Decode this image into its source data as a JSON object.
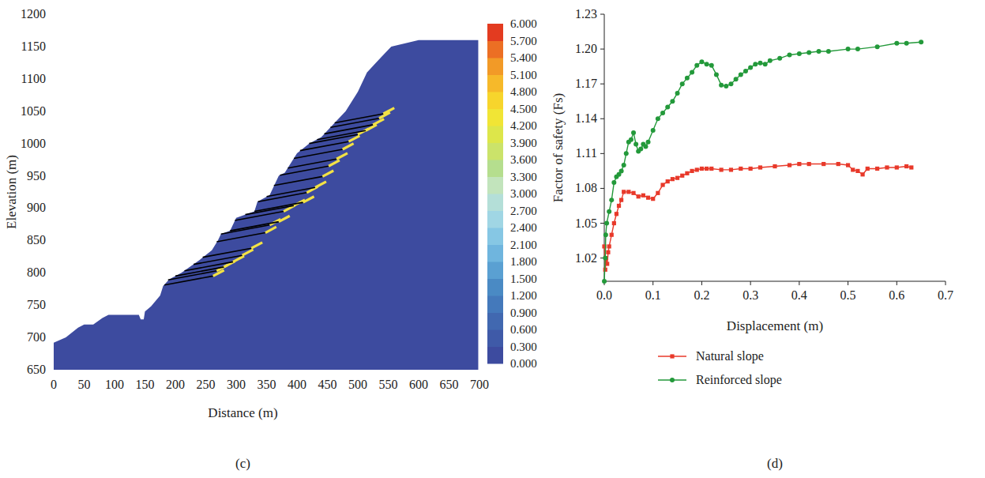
{
  "chart_data": [
    {
      "type": "section",
      "caption": "(c)",
      "xlabel": "Distance (m)",
      "ylabel": "Elevation (m)",
      "xlim": [
        0,
        700
      ],
      "xticks": [
        0,
        50,
        100,
        150,
        200,
        250,
        300,
        350,
        400,
        450,
        500,
        550,
        600,
        650,
        700
      ],
      "ylim": [
        650,
        1200
      ],
      "yticks": [
        650,
        700,
        750,
        800,
        850,
        900,
        950,
        1000,
        1050,
        1100,
        1150,
        1200
      ],
      "color": "#3d4b9f",
      "profile": {
        "x": [
          0,
          20,
          40,
          50,
          65,
          80,
          90,
          140,
          143,
          148,
          150,
          160,
          175,
          180,
          190,
          210,
          240,
          260,
          270,
          275,
          290,
          300,
          330,
          335,
          355,
          370,
          380,
          390,
          400,
          420,
          440,
          460,
          480,
          500,
          515,
          530,
          545,
          555,
          600,
          698,
          698,
          0
        ],
        "y": [
          692,
          700,
          715,
          720,
          720,
          730,
          735,
          735,
          728,
          728,
          740,
          748,
          765,
          780,
          790,
          800,
          820,
          835,
          850,
          860,
          865,
          885,
          895,
          910,
          920,
          950,
          955,
          970,
          985,
          1000,
          1010,
          1030,
          1050,
          1080,
          1110,
          1125,
          1140,
          1150,
          1160,
          1160,
          650,
          650
        ]
      },
      "anchors": {
        "x_head": [
          182,
          188,
          200,
          215,
          230,
          245,
          268,
          275,
          290,
          298,
          315,
          330,
          336,
          350,
          362,
          372,
          385,
          395,
          405,
          420,
          433,
          445,
          455,
          462
        ],
        "y_head": [
          781,
          789,
          795,
          803,
          813,
          824,
          848,
          860,
          865,
          881,
          890,
          895,
          910,
          918,
          935,
          951,
          962,
          977,
          989,
          1000,
          1006,
          1015,
          1025,
          1032
        ],
        "x_bond": [
          262,
          268,
          280,
          295,
          310,
          325,
          348,
          355,
          370,
          378,
          395,
          410,
          416,
          430,
          442,
          452,
          465,
          475,
          485,
          500,
          513,
          525,
          535,
          542
        ],
        "y_bond": [
          795,
          803,
          809,
          817,
          827,
          838,
          862,
          874,
          879,
          895,
          904,
          909,
          924,
          932,
          949,
          965,
          976,
          991,
          1003,
          1014,
          1020,
          1029,
          1039,
          1046
        ],
        "x_end": [
          280,
          286,
          298,
          313,
          328,
          343,
          366,
          373,
          388,
          396,
          413,
          428,
          434,
          448,
          460,
          470,
          483,
          493,
          503,
          518,
          531,
          543,
          553,
          560
        ],
        "y_end": [
          804,
          812,
          818,
          826,
          836,
          847,
          871,
          883,
          888,
          904,
          913,
          918,
          933,
          941,
          958,
          974,
          985,
          1000,
          1012,
          1023,
          1029,
          1038,
          1048,
          1055
        ]
      },
      "colorbar": {
        "range": [
          0,
          6
        ],
        "ticks": [
          {
            "value": 0,
            "label": "0.000"
          },
          {
            "value": 0.3,
            "label": "0.300"
          },
          {
            "value": 0.6,
            "label": "0.600"
          },
          {
            "value": 0.9,
            "label": "0.900"
          },
          {
            "value": 1.2,
            "label": "1.200"
          },
          {
            "value": 1.5,
            "label": "1.500"
          },
          {
            "value": 1.8,
            "label": "1.800"
          },
          {
            "value": 2.1,
            "label": "2.100"
          },
          {
            "value": 2.4,
            "label": "2.400"
          },
          {
            "value": 2.7,
            "label": "2.700"
          },
          {
            "value": 3,
            "label": "3.000"
          },
          {
            "value": 3.3,
            "label": "3.300"
          },
          {
            "value": 3.6,
            "label": "3.600"
          },
          {
            "value": 3.9,
            "label": "3.900"
          },
          {
            "value": 4.2,
            "label": "4.200"
          },
          {
            "value": 4.5,
            "label": "4.500"
          },
          {
            "value": 4.8,
            "label": "4.800"
          },
          {
            "value": 5.1,
            "label": "5.100"
          },
          {
            "value": 5.4,
            "label": "5.400"
          },
          {
            "value": 5.7,
            "label": "5.700"
          },
          {
            "value": 6,
            "label": "6.000"
          }
        ],
        "colors": [
          "#3d4b9f",
          "#3f5aa8",
          "#4168b0",
          "#4479bb",
          "#4a8ac4",
          "#5aa0d2",
          "#6fb5de",
          "#86c7e4",
          "#a0d6e4",
          "#b4dfd8",
          "#c2e4bc",
          "#b5de8e",
          "#cbe36a",
          "#dde64a",
          "#f1e535",
          "#f7d52c",
          "#f6b92a",
          "#f29a27",
          "#ec6f24",
          "#e33b20"
        ]
      }
    },
    {
      "type": "line",
      "caption": "(d)",
      "xlabel": "Displacement (m)",
      "ylabel": "Factor of safety (Fs)",
      "xlim": [
        0,
        0.7
      ],
      "xticks": [
        {
          "value": 0,
          "label": "0.0"
        },
        0.1,
        0.2,
        0.3,
        0.4,
        0.5,
        0.6,
        0.7
      ],
      "ylim": [
        1.0,
        1.23
      ],
      "yticks": [
        1.02,
        1.05,
        1.08,
        1.11,
        1.14,
        1.17,
        {
          "value": 1.2,
          "label": "1.20"
        },
        1.23
      ],
      "grid": false,
      "legend": "bottom",
      "series": [
        {
          "name": "Natural slope",
          "color": "#e8392a",
          "marker": "square",
          "line_style": "solid",
          "x": [
            0,
            0.002,
            0.004,
            0.006,
            0.008,
            0.01,
            0.015,
            0.02,
            0.025,
            0.03,
            0.035,
            0.04,
            0.05,
            0.06,
            0.07,
            0.08,
            0.09,
            0.1,
            0.11,
            0.12,
            0.13,
            0.14,
            0.15,
            0.16,
            0.17,
            0.18,
            0.19,
            0.2,
            0.21,
            0.22,
            0.24,
            0.26,
            0.28,
            0.3,
            0.32,
            0.35,
            0.38,
            0.4,
            0.42,
            0.45,
            0.48,
            0.5,
            0.51,
            0.52,
            0.53,
            0.54,
            0.56,
            0.58,
            0.6,
            0.62,
            0.63
          ],
          "values": [
            1.03,
            1.01,
            1.02,
            1.015,
            1.025,
            1.03,
            1.04,
            1.05,
            1.058,
            1.065,
            1.07,
            1.077,
            1.077,
            1.076,
            1.073,
            1.074,
            1.072,
            1.071,
            1.076,
            1.083,
            1.086,
            1.088,
            1.089,
            1.091,
            1.093,
            1.095,
            1.096,
            1.097,
            1.097,
            1.097,
            1.096,
            1.096,
            1.097,
            1.097,
            1.098,
            1.099,
            1.1,
            1.101,
            1.101,
            1.101,
            1.101,
            1.1,
            1.096,
            1.095,
            1.092,
            1.097,
            1.097,
            1.098,
            1.098,
            1.099,
            1.098
          ]
        },
        {
          "name": "Reinforced slope",
          "color": "#23993a",
          "marker": "circle",
          "line_style": "solid",
          "x": [
            0,
            0.002,
            0.003,
            0.005,
            0.01,
            0.015,
            0.02,
            0.025,
            0.03,
            0.035,
            0.04,
            0.045,
            0.05,
            0.055,
            0.06,
            0.065,
            0.07,
            0.075,
            0.08,
            0.085,
            0.09,
            0.1,
            0.11,
            0.12,
            0.13,
            0.14,
            0.15,
            0.16,
            0.17,
            0.18,
            0.19,
            0.2,
            0.21,
            0.22,
            0.23,
            0.24,
            0.25,
            0.26,
            0.27,
            0.28,
            0.29,
            0.3,
            0.31,
            0.32,
            0.33,
            0.34,
            0.36,
            0.38,
            0.4,
            0.42,
            0.44,
            0.46,
            0.5,
            0.52,
            0.56,
            0.6,
            0.62,
            0.65
          ],
          "values": [
            1.0,
            1.02,
            1.04,
            1.05,
            1.06,
            1.07,
            1.085,
            1.09,
            1.092,
            1.095,
            1.1,
            1.11,
            1.12,
            1.122,
            1.128,
            1.118,
            1.112,
            1.114,
            1.118,
            1.116,
            1.12,
            1.13,
            1.14,
            1.145,
            1.15,
            1.155,
            1.162,
            1.17,
            1.175,
            1.18,
            1.186,
            1.189,
            1.187,
            1.186,
            1.178,
            1.169,
            1.168,
            1.17,
            1.174,
            1.178,
            1.181,
            1.184,
            1.187,
            1.188,
            1.187,
            1.19,
            1.192,
            1.195,
            1.196,
            1.197,
            1.198,
            1.198,
            1.2,
            1.2,
            1.202,
            1.205,
            1.205,
            1.206
          ]
        }
      ]
    }
  ]
}
